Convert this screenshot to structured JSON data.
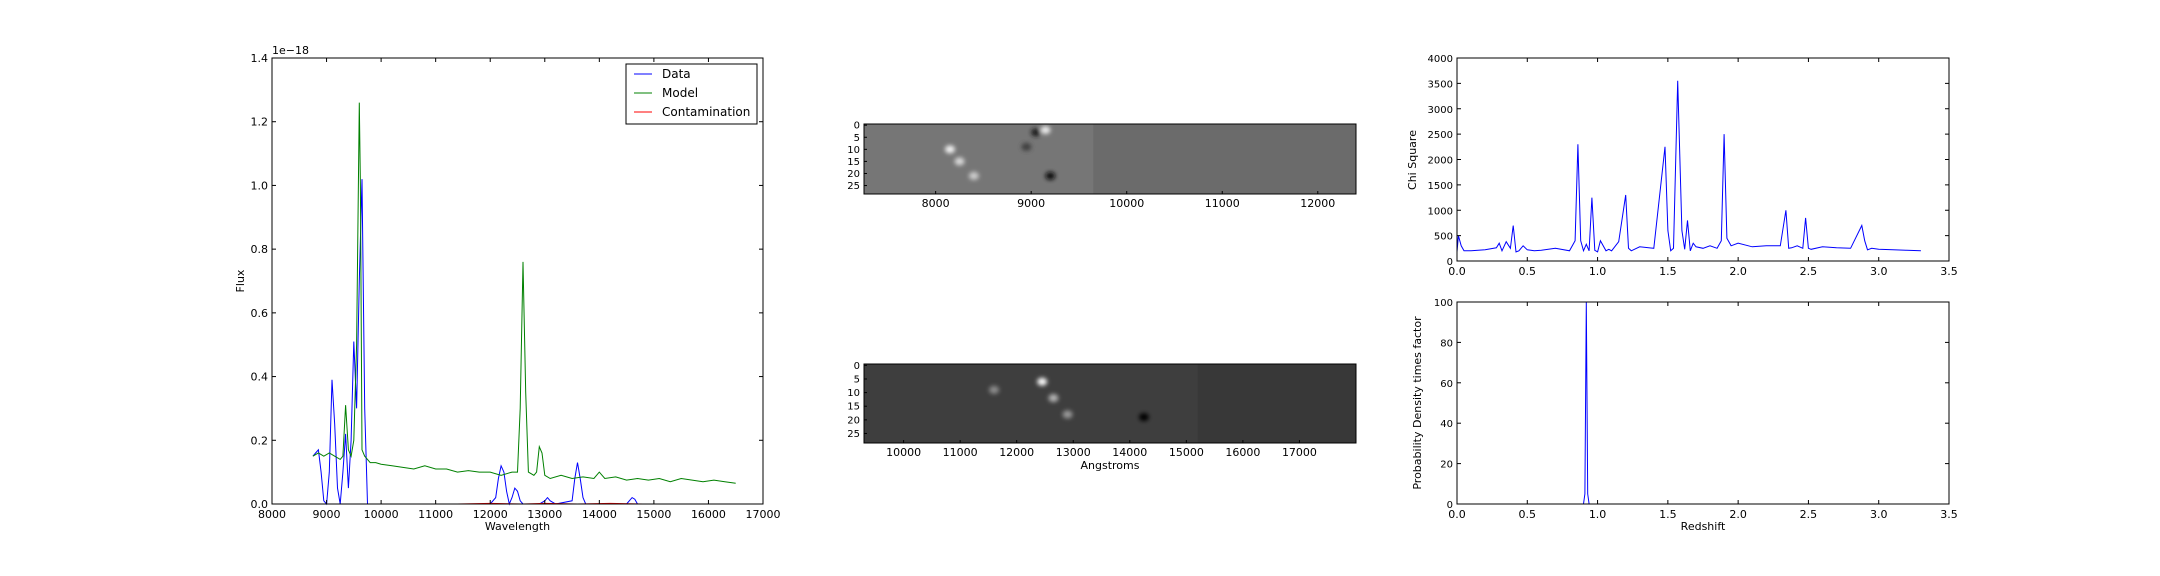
{
  "chart_data": [
    {
      "type": "line",
      "offset_label": "1e−18",
      "xlabel": "Wavelength",
      "ylabel": "Flux",
      "xlim": [
        8000,
        17000
      ],
      "ylim": [
        0,
        1.4
      ],
      "xticks": [
        8000,
        9000,
        10000,
        11000,
        12000,
        13000,
        14000,
        15000,
        16000,
        17000
      ],
      "yticks": [
        0.0,
        0.2,
        0.4,
        0.6,
        0.8,
        1.0,
        1.2,
        1.4
      ],
      "ytick_labels": [
        "0.0",
        "0.2",
        "0.4",
        "0.6",
        "0.8",
        "1.0",
        "1.2",
        "1.4"
      ],
      "legend_position": "top-right",
      "series": [
        {
          "name": "Data",
          "color": "#0000ff",
          "x": [
            8750,
            8800,
            8850,
            8900,
            8950,
            9000,
            9050,
            9100,
            9150,
            9200,
            9250,
            9300,
            9350,
            9400,
            9450,
            9500,
            9550,
            9600,
            9650,
            9700,
            9750,
            9800,
            9900,
            10500,
            11000,
            11500,
            12000,
            12100,
            12150,
            12200,
            12250,
            12300,
            12350,
            12400,
            12450,
            12500,
            12550,
            12600,
            12700,
            12900,
            13000,
            13050,
            13100,
            13200,
            13500,
            13550,
            13600,
            13650,
            13700,
            13750,
            13800,
            14000,
            14500,
            14550,
            14600,
            14650,
            14700,
            15000,
            15300
          ],
          "y": [
            0.15,
            0.16,
            0.17,
            0.1,
            0.01,
            0.0,
            0.1,
            0.39,
            0.25,
            0.05,
            0.0,
            0.1,
            0.22,
            0.05,
            0.2,
            0.51,
            0.3,
            0.7,
            1.02,
            0.3,
            0.0,
            0.0,
            0.0,
            0.0,
            0.0,
            0.0,
            0.0,
            0.02,
            0.08,
            0.12,
            0.1,
            0.04,
            0.0,
            0.02,
            0.05,
            0.04,
            0.01,
            0.0,
            0.0,
            0.0,
            0.01,
            0.02,
            0.01,
            0.0,
            0.01,
            0.08,
            0.13,
            0.08,
            0.02,
            0.0,
            0.0,
            0.0,
            0.0,
            0.01,
            0.02,
            0.015,
            0.0,
            0.0,
            0.0
          ]
        },
        {
          "name": "Model",
          "color": "#008000",
          "x": [
            8750,
            8850,
            8950,
            9050,
            9150,
            9250,
            9300,
            9350,
            9400,
            9450,
            9500,
            9550,
            9600,
            9620,
            9650,
            9700,
            9750,
            9800,
            9900,
            10000,
            10200,
            10400,
            10600,
            10800,
            11000,
            11200,
            11400,
            11600,
            11800,
            12000,
            12200,
            12400,
            12500,
            12550,
            12600,
            12650,
            12700,
            12800,
            12850,
            12900,
            12950,
            13000,
            13100,
            13300,
            13500,
            13700,
            13900,
            14000,
            14100,
            14300,
            14500,
            14700,
            14900,
            15100,
            15300,
            15500,
            15700,
            15900,
            16100,
            16300,
            16500
          ],
          "y": [
            0.15,
            0.16,
            0.15,
            0.16,
            0.15,
            0.14,
            0.15,
            0.31,
            0.17,
            0.15,
            0.2,
            0.5,
            1.26,
            1.0,
            0.17,
            0.15,
            0.14,
            0.13,
            0.13,
            0.125,
            0.12,
            0.115,
            0.11,
            0.12,
            0.11,
            0.11,
            0.1,
            0.105,
            0.1,
            0.1,
            0.09,
            0.1,
            0.1,
            0.3,
            0.76,
            0.35,
            0.1,
            0.09,
            0.1,
            0.18,
            0.16,
            0.09,
            0.08,
            0.09,
            0.08,
            0.085,
            0.08,
            0.1,
            0.08,
            0.085,
            0.075,
            0.08,
            0.075,
            0.08,
            0.07,
            0.08,
            0.075,
            0.07,
            0.075,
            0.07,
            0.065
          ]
        },
        {
          "name": "Contamination",
          "color": "#ff0000",
          "x": [
            11400,
            12000,
            12600,
            13000,
            13600,
            14200,
            14800,
            15300
          ],
          "y": [
            0.0,
            0.002,
            0.0,
            0.002,
            0.0,
            0.002,
            0.0,
            0.0
          ]
        }
      ]
    },
    {
      "type": "heatmap",
      "xlim": [
        7250,
        12400
      ],
      "xticks": [
        8000,
        9000,
        10000,
        11000,
        12000
      ],
      "yticks": [
        0,
        5,
        10,
        15,
        20,
        25
      ],
      "rows": 29,
      "data_xlim": [
        7250,
        9650
      ],
      "background_gray": "#6b6b6b",
      "field_gray": "#767676",
      "features": [
        {
          "x": 8150,
          "y": 10,
          "value": 0.95
        },
        {
          "x": 8250,
          "y": 15,
          "value": 0.85
        },
        {
          "x": 8400,
          "y": 21,
          "value": 0.8
        },
        {
          "x": 9150,
          "y": 2,
          "value": 0.92
        },
        {
          "x": 9050,
          "y": 3,
          "value": 0.1
        },
        {
          "x": 9200,
          "y": 21,
          "value": 0.05
        },
        {
          "x": 8950,
          "y": 9,
          "value": 0.25
        }
      ]
    },
    {
      "type": "heatmap",
      "xlabel": "Angstroms",
      "xlim": [
        9300,
        18000
      ],
      "xticks": [
        10000,
        11000,
        12000,
        13000,
        14000,
        15000,
        16000,
        17000
      ],
      "yticks": [
        0,
        5,
        10,
        15,
        20,
        25
      ],
      "rows": 29,
      "data_xlim": [
        9300,
        15200
      ],
      "background_gray": "#383838",
      "field_gray": "#3e3e3e",
      "features": [
        {
          "x": 12450,
          "y": 6,
          "value": 0.98
        },
        {
          "x": 12650,
          "y": 12,
          "value": 0.7
        },
        {
          "x": 12900,
          "y": 18,
          "value": 0.6
        },
        {
          "x": 14250,
          "y": 19,
          "value": 0.02
        },
        {
          "x": 11600,
          "y": 9,
          "value": 0.55
        }
      ]
    },
    {
      "type": "line",
      "ylabel": "Chi Square",
      "xlim": [
        0,
        3.5
      ],
      "ylim": [
        0,
        4000
      ],
      "xticks": [
        0.0,
        0.5,
        1.0,
        1.5,
        2.0,
        2.5,
        3.0,
        3.5
      ],
      "xtick_labels": [
        "0.0",
        "0.5",
        "1.0",
        "1.5",
        "2.0",
        "2.5",
        "3.0",
        "3.5"
      ],
      "yticks": [
        0,
        500,
        1000,
        1500,
        2000,
        2500,
        3000,
        3500,
        4000
      ],
      "series": [
        {
          "color": "#0000ff",
          "x": [
            0.0,
            0.01,
            0.03,
            0.05,
            0.1,
            0.2,
            0.28,
            0.3,
            0.32,
            0.35,
            0.38,
            0.4,
            0.42,
            0.44,
            0.47,
            0.5,
            0.55,
            0.6,
            0.7,
            0.8,
            0.84,
            0.86,
            0.88,
            0.9,
            0.92,
            0.94,
            0.96,
            0.98,
            1.0,
            1.02,
            1.06,
            1.08,
            1.1,
            1.15,
            1.2,
            1.22,
            1.24,
            1.3,
            1.4,
            1.48,
            1.5,
            1.52,
            1.54,
            1.57,
            1.6,
            1.62,
            1.64,
            1.66,
            1.68,
            1.7,
            1.75,
            1.8,
            1.85,
            1.88,
            1.9,
            1.92,
            1.95,
            2.0,
            2.1,
            2.2,
            2.3,
            2.34,
            2.36,
            2.38,
            2.42,
            2.46,
            2.48,
            2.5,
            2.52,
            2.6,
            2.7,
            2.8,
            2.88,
            2.9,
            2.92,
            2.95,
            3.0,
            3.1,
            3.2,
            3.3
          ],
          "y": [
            180,
            500,
            300,
            200,
            200,
            220,
            260,
            350,
            200,
            380,
            250,
            700,
            180,
            200,
            300,
            220,
            200,
            210,
            250,
            200,
            400,
            2300,
            400,
            200,
            330,
            200,
            1250,
            210,
            180,
            400,
            200,
            230,
            200,
            380,
            1300,
            250,
            200,
            280,
            250,
            2250,
            600,
            200,
            250,
            3550,
            600,
            230,
            800,
            200,
            350,
            280,
            250,
            300,
            250,
            400,
            2500,
            450,
            300,
            350,
            280,
            300,
            300,
            1000,
            250,
            260,
            300,
            250,
            850,
            250,
            230,
            280,
            260,
            250,
            700,
            400,
            220,
            250,
            230,
            220,
            210,
            200
          ]
        }
      ]
    },
    {
      "type": "line",
      "xlabel": "Redshift",
      "ylabel": "Probability Density times factor",
      "xlim": [
        0,
        3.5
      ],
      "ylim": [
        0,
        100
      ],
      "xticks": [
        0.0,
        0.5,
        1.0,
        1.5,
        2.0,
        2.5,
        3.0,
        3.5
      ],
      "xtick_labels": [
        "0.0",
        "0.5",
        "1.0",
        "1.5",
        "2.0",
        "2.5",
        "3.0",
        "3.5"
      ],
      "yticks": [
        0,
        20,
        40,
        60,
        80,
        100
      ],
      "series": [
        {
          "color": "#0000ff",
          "x": [
            0.0,
            0.9,
            0.91,
            0.92,
            0.93,
            0.94,
            0.95,
            3.3
          ],
          "y": [
            0,
            0,
            5,
            100,
            5,
            0,
            0,
            0
          ]
        }
      ]
    }
  ]
}
